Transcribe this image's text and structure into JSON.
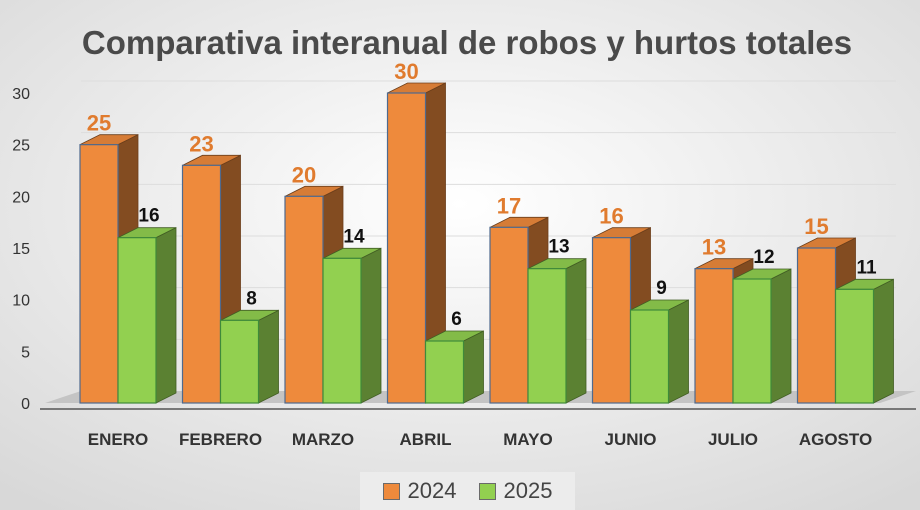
{
  "chart_data": {
    "type": "bar",
    "title": "Comparativa interanual de robos y hurtos totales",
    "xlabel": "",
    "ylabel": "",
    "categories": [
      "ENERO",
      "FEBRERO",
      "MARZO",
      "ABRIL",
      "MAYO",
      "JUNIO",
      "JULIO",
      "AGOSTO"
    ],
    "series": [
      {
        "name": "2024",
        "values": [
          25,
          23,
          20,
          30,
          17,
          16,
          13,
          15
        ],
        "color": "#ee8a3c",
        "label_color": "#e07b2e"
      },
      {
        "name": "2025",
        "values": [
          16,
          8,
          14,
          6,
          13,
          9,
          12,
          11
        ],
        "color": "#92d050",
        "label_color": "#111111"
      }
    ],
    "ylim": [
      0,
      30
    ],
    "yticks": [
      0,
      5,
      10,
      15,
      20,
      25,
      30
    ],
    "grid": true,
    "legend": "bottom",
    "style": "3d-clustered-column"
  }
}
